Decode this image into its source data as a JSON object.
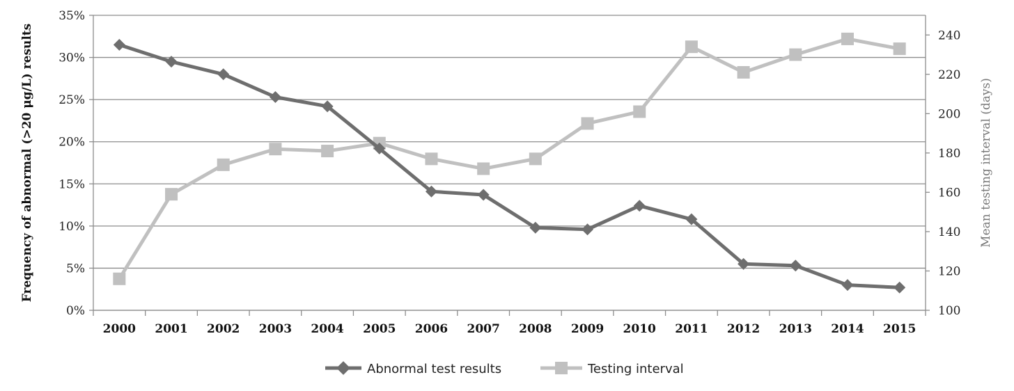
{
  "chart_data": {
    "type": "line",
    "categories": [
      "2000",
      "2001",
      "2002",
      "2003",
      "2004",
      "2005",
      "2006",
      "2007",
      "2008",
      "2009",
      "2010",
      "2011",
      "2012",
      "2013",
      "2014",
      "2015"
    ],
    "series": [
      {
        "name": "Abnormal test results",
        "axis": "left",
        "unit": "percent",
        "values": [
          31.5,
          29.5,
          28.0,
          25.3,
          24.2,
          19.2,
          14.1,
          13.7,
          9.8,
          9.6,
          12.4,
          10.8,
          5.5,
          5.3,
          3.0,
          2.7
        ],
        "color": "#6e6e6e",
        "marker": "diamond"
      },
      {
        "name": "Testing interval",
        "axis": "right",
        "unit": "days",
        "values": [
          116,
          159,
          174,
          182,
          181,
          185,
          177,
          172,
          177,
          195,
          201,
          234,
          221,
          230,
          238,
          233
        ],
        "color": "#c0c0c0",
        "marker": "square"
      }
    ],
    "ylabel_left": "Frequency of abnormal (>20 μg/L) results",
    "ylabel_right": "Mean testing interval (days)",
    "ylim_left": [
      0,
      35
    ],
    "yticks_left": [
      "0%",
      "5%",
      "10%",
      "15%",
      "20%",
      "25%",
      "30%",
      "35%"
    ],
    "ylim_right": [
      100,
      250
    ],
    "yticks_right": [
      "100",
      "120",
      "140",
      "160",
      "180",
      "200",
      "220",
      "240"
    ],
    "grid": true,
    "legend_position": "bottom"
  }
}
